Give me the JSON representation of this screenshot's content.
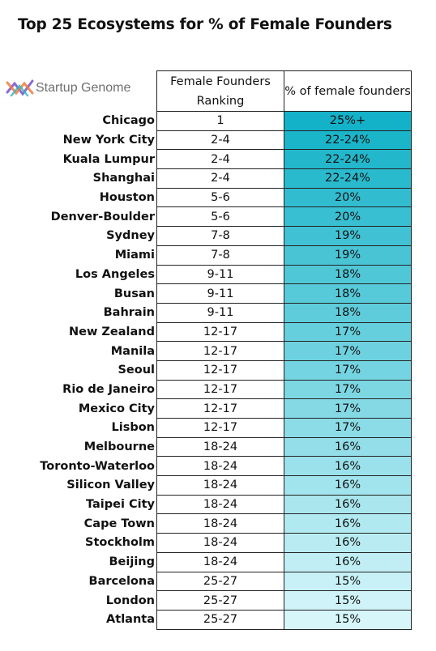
{
  "header": {
    "title": "Top 25 Ecosystems for % of Female Founders",
    "logo": "Startup Genome"
  },
  "table": {
    "columns": [
      "Female Founders Ranking",
      "% of female founders"
    ],
    "rows": [
      [
        "Chicago",
        "1",
        "25%+"
      ],
      [
        "New York City",
        "2-4",
        "22-24%"
      ],
      [
        "Kuala Lumpur",
        "2-4",
        "22-24%"
      ],
      [
        "Shanghai",
        "2-4",
        "22-24%"
      ],
      [
        "Houston",
        "5-6",
        "20%"
      ],
      [
        "Denver-Boulder",
        "5-6",
        "20%"
      ],
      [
        "Sydney",
        "7-8",
        "19%"
      ],
      [
        "Miami",
        "7-8",
        "19%"
      ],
      [
        "Los Angeles",
        "9-11",
        "18%"
      ],
      [
        "Busan",
        "9-11",
        "18%"
      ],
      [
        "Bahrain",
        "9-11",
        "18%"
      ],
      [
        "New Zealand",
        "12-17",
        "17%"
      ],
      [
        "Manila",
        "12-17",
        "17%"
      ],
      [
        "Seoul",
        "12-17",
        "17%"
      ],
      [
        "Rio de Janeiro",
        "12-17",
        "17%"
      ],
      [
        "Mexico City",
        "12-17",
        "17%"
      ],
      [
        "Lisbon",
        "12-17",
        "17%"
      ],
      [
        "Melbourne",
        "18-24",
        "16%"
      ],
      [
        "Toronto-Waterloo",
        "18-24",
        "16%"
      ],
      [
        "Silicon Valley",
        "18-24",
        "16%"
      ],
      [
        "Taipei City",
        "18-24",
        "16%"
      ],
      [
        "Cape Town",
        "18-24",
        "16%"
      ],
      [
        "Stockholm",
        "18-24",
        "16%"
      ],
      [
        "Beijing",
        "18-24",
        "16%"
      ],
      [
        "Barcelona",
        "25-27",
        "15%"
      ],
      [
        "London",
        "25-27",
        "15%"
      ],
      [
        "Atlanta",
        "25-27",
        "15%"
      ]
    ]
  }
}
